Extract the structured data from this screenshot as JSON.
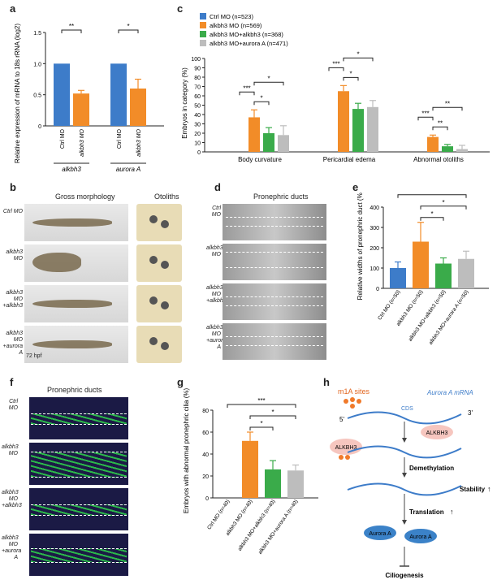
{
  "colors": {
    "blue": "#3d7cc9",
    "orange": "#f28c28",
    "green": "#3aab4a",
    "gray": "#bdbdbd",
    "mrna": "#3d7cc9",
    "dot": "#f07a2a",
    "alk": "#f6c6bf",
    "aurora": "#3b82c8"
  },
  "panels": {
    "a": "a",
    "b": "b",
    "c": "c",
    "d": "d",
    "e": "e",
    "f": "f",
    "g": "g",
    "h": "h"
  },
  "chart_data": [
    {
      "id": "a",
      "type": "bar",
      "ylabel": "Relative expression of mRNA to 18s rRNA (log2)",
      "ylim": [
        0,
        1.5
      ],
      "yticks": [
        "0",
        "0.5",
        "1.0",
        "1.5"
      ],
      "groups": [
        {
          "name": "alkbh3",
          "categories": [
            "Ctrl MO",
            "alkbh3 MO"
          ],
          "values": [
            1.0,
            0.52
          ],
          "errors": [
            0,
            0.05
          ],
          "sig": "**"
        },
        {
          "name": "aurora A",
          "categories": [
            "Ctrl MO",
            "alkbh3 MO"
          ],
          "values": [
            1.0,
            0.6
          ],
          "errors": [
            0,
            0.15
          ],
          "sig": "*"
        }
      ]
    },
    {
      "id": "c",
      "type": "bar",
      "ylabel": "Embryos in category (%)",
      "ylim": [
        0,
        100
      ],
      "yticks": [
        "0",
        "10",
        "20",
        "30",
        "40",
        "50",
        "60",
        "70",
        "80",
        "90",
        "100"
      ],
      "categories": [
        "Body curvature",
        "Pericardial edema",
        "Abnormal otoliths"
      ],
      "series": [
        {
          "name": "Ctrl MO (n=523)",
          "values": [
            0,
            0,
            0
          ],
          "errors": [
            0,
            0,
            0
          ]
        },
        {
          "name": "alkbh3 MO (n=569)",
          "values": [
            37,
            65,
            16
          ],
          "errors": [
            8,
            6,
            2
          ]
        },
        {
          "name": "alkbh3 MO+alkbh3 (n=368)",
          "values": [
            20,
            46,
            6
          ],
          "errors": [
            6,
            6,
            2
          ]
        },
        {
          "name": "alkbh3 MO+aurora A (n=471)",
          "values": [
            18,
            48,
            3
          ],
          "errors": [
            10,
            7,
            4
          ]
        }
      ],
      "sig": [
        [
          "***",
          "*",
          "*"
        ],
        [
          "***",
          "*",
          "*"
        ],
        [
          "***",
          "**",
          "**"
        ]
      ]
    },
    {
      "id": "e",
      "type": "bar",
      "ylabel": "Relative widths of pronephric duct (%)",
      "ylim": [
        0,
        400
      ],
      "yticks": [
        "0",
        "100",
        "200",
        "300",
        "400"
      ],
      "categories": [
        "Ctrl MO (n=50)",
        "alkbh3 MO (n=50)",
        "alkbh3 MO+alkbh3 (n=50)",
        "alkbh3 MO+aurora A (n=50)"
      ],
      "values": [
        100,
        230,
        122,
        145
      ],
      "errors": [
        30,
        95,
        28,
        38
      ],
      "sig": [
        "***",
        "*",
        "*"
      ]
    },
    {
      "id": "g",
      "type": "bar",
      "ylabel": "Embryos with abnormal pronephric cilia (%)",
      "ylim": [
        0,
        80
      ],
      "yticks": [
        "0",
        "20",
        "40",
        "60",
        "80"
      ],
      "categories": [
        "Ctrl MO (n=40)",
        "alkbh3 MO (n=40)",
        "alkbh3 MO+alkbh3 (n=40)",
        "alkbh3 MO+aurora A (n=40)"
      ],
      "values": [
        0,
        52,
        26,
        25
      ],
      "errors": [
        0,
        8,
        8,
        5
      ],
      "sig": [
        "***",
        "*",
        "*"
      ]
    }
  ],
  "b": {
    "col1": "Gross morphology",
    "col2": "Otoliths",
    "rows": [
      "Ctrl MO",
      "alkbh3 MO",
      "alkbh3 MO +alkbh3",
      "alkbh3 MO +aurora A"
    ],
    "stage": "72 hpf"
  },
  "d": {
    "title": "Pronephric ducts",
    "rows": [
      "Ctrl MO",
      "alkbh3 MO",
      "alkbh3 MO +alkbh3",
      "alkbh3 MO +aurora A"
    ]
  },
  "f": {
    "title": "Pronephric ducts",
    "rows": [
      "Ctrl MO",
      "alkbh3 MO",
      "alkbh3 MO +alkbh3",
      "alkbh3 MO +aurora A"
    ]
  },
  "h": {
    "m1a": "m1A sites",
    "mrna": "Aurora A mRNA",
    "cds": "CDS",
    "five": "5'",
    "three": "3'",
    "alk1": "ALKBH3",
    "alk2": "ALKBH3",
    "demeth": "Demethylation",
    "transl": "Translation",
    "stab": "Stability",
    "aur1": "Aurora A",
    "aur2": "Aurora A",
    "cilio": "Ciliogenesis"
  }
}
